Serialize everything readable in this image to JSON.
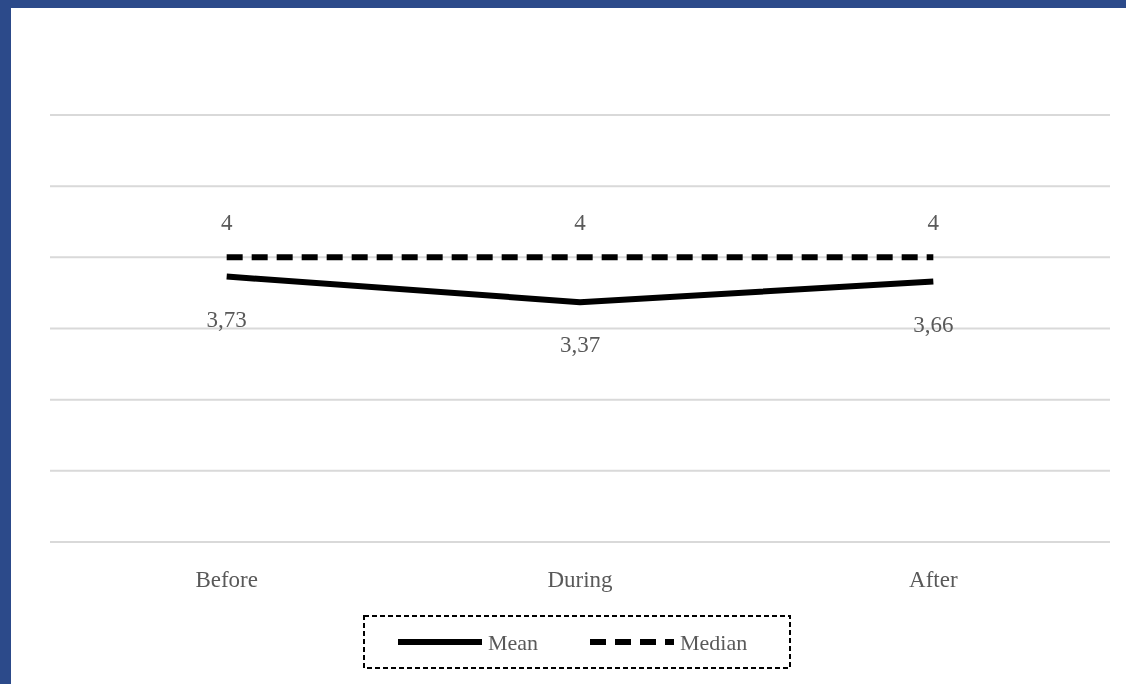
{
  "chart_data": {
    "type": "line",
    "categories": [
      "Before",
      "During",
      "After"
    ],
    "series": [
      {
        "name": "Mean",
        "color": "#000000",
        "values": [
          3.73,
          3.37,
          3.66
        ],
        "value_labels": [
          "3,73",
          "3,37",
          "3,66"
        ],
        "line_style": "solid"
      },
      {
        "name": "Median",
        "color": "#000000",
        "values": [
          4,
          4,
          4
        ],
        "value_labels": [
          "4",
          "4",
          "4"
        ],
        "line_style": "dashed"
      }
    ],
    "ylim": [
      0,
      6
    ],
    "yticks": [
      {
        "value": 0,
        "label": null
      },
      {
        "value": 1,
        "label": null
      },
      {
        "value": 2,
        "label": null
      },
      {
        "value": 3,
        "label": null
      },
      {
        "value": 4,
        "label": null
      },
      {
        "value": 5,
        "label": null
      },
      {
        "value": 6,
        "label": null
      }
    ],
    "tick_labels": "x",
    "grid": "y",
    "legend": "bottom"
  }
}
